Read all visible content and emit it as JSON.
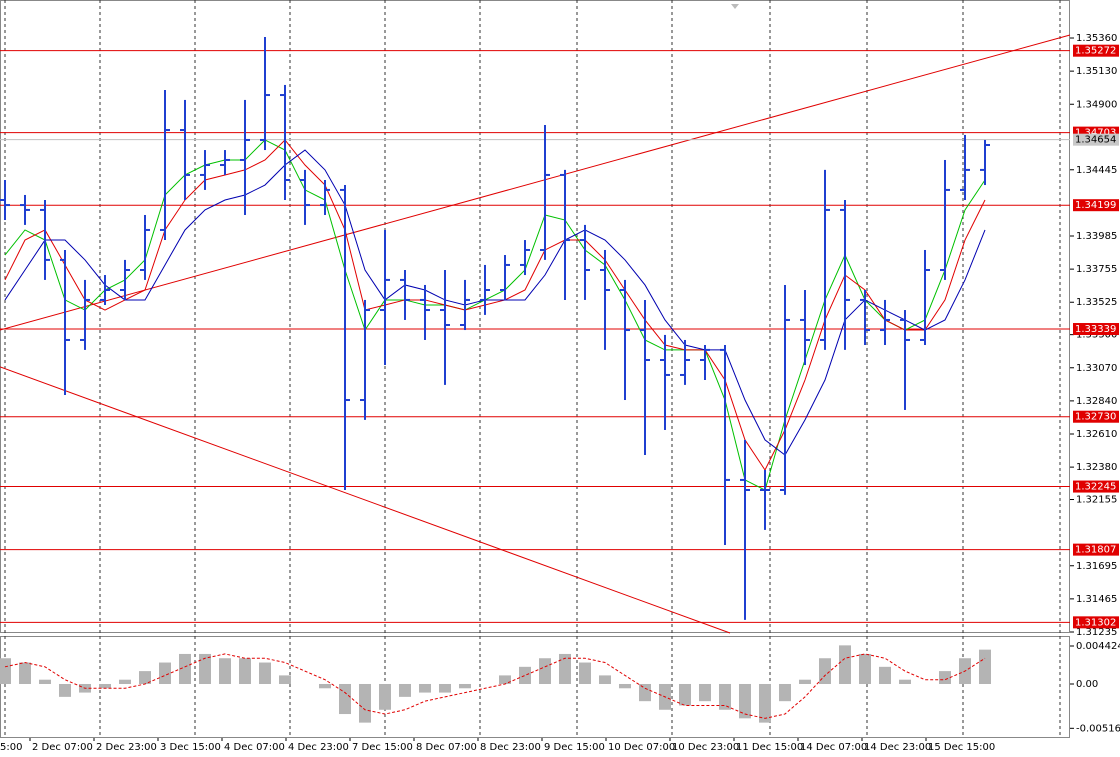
{
  "chart_data": {
    "type": "ohlc",
    "color": "#1f3fd0",
    "xlim": [
      -0.25,
      53.25
    ],
    "ylim": [
      1.31228,
      1.35624
    ],
    "yticks": [
      {
        "value": 1.3536,
        "label": "1.35360"
      },
      {
        "value": 1.3513,
        "label": "1.35130"
      },
      {
        "value": 1.349,
        "label": "1.34900"
      },
      1.34445,
      1.33985,
      1.33755,
      1.33525,
      {
        "value": 1.333,
        "label": "1.33300"
      },
      {
        "value": 1.3307,
        "label": "1.33070"
      },
      {
        "value": 1.3284,
        "label": "1.32840"
      },
      {
        "value": 1.3261,
        "label": "1.32610"
      },
      {
        "value": 1.3238,
        "label": "1.32380"
      },
      1.32155,
      1.31695,
      1.31465,
      1.31235
    ],
    "xticks": [
      {
        "value": -1.95,
        "label": "5:00"
      },
      {
        "value": 1.25,
        "label": "2 Dec 07:00"
      },
      {
        "value": 4.45,
        "label": "2 Dec 23:00"
      },
      {
        "value": 7.65,
        "label": "3 Dec 15:00"
      },
      {
        "value": 10.85,
        "label": "4 Dec 07:00"
      },
      {
        "value": 14.05,
        "label": "4 Dec 23:00"
      },
      {
        "value": 17.25,
        "label": "7 Dec 15:00"
      },
      {
        "value": 20.45,
        "label": "8 Dec 07:00"
      },
      {
        "value": 23.65,
        "label": "8 Dec 23:00"
      },
      {
        "value": 26.85,
        "label": "9 Dec 15:00"
      },
      {
        "value": 30.05,
        "label": "10 Dec 07:00"
      },
      {
        "value": 33.25,
        "label": "10 Dec 23:00"
      },
      {
        "value": 36.45,
        "label": "11 Dec 15:00"
      },
      {
        "value": 39.65,
        "label": "14 Dec 07:00"
      },
      {
        "value": 42.85,
        "label": "14 Dec 23:00"
      },
      {
        "value": 46.05,
        "label": "15 Dec 15:00"
      }
    ],
    "open": [
      1.34235,
      1.342,
      1.34166,
      1.33819,
      1.33263,
      1.33541,
      1.3361,
      1.33749,
      1.34027,
      1.34721,
      1.34409,
      1.34478,
      1.34513,
      1.34652,
      1.34964,
      1.34374,
      1.342,
      1.34305,
      1.32846,
      1.33471,
      1.3368,
      1.33541,
      1.33471,
      1.33367,
      1.33541,
      1.3361,
      1.33784,
      1.33888,
      1.34409,
      1.33957,
      1.33749,
      1.3361,
      1.33332,
      1.33124,
      1.3302,
      1.33124,
      1.33194,
      1.32291,
      1.32221,
      1.32221,
      1.33402,
      1.33263,
      1.34166,
      1.33541,
      1.33332,
      1.33402,
      1.33263,
      1.33749,
      1.34305,
      1.34444
    ],
    "high": [
      1.34374,
      1.3427,
      1.34235,
      1.33888,
      1.3368,
      1.33714,
      1.33819,
      1.34131,
      1.34999,
      1.3493,
      1.34582,
      1.34582,
      1.3493,
      1.35367,
      1.35034,
      1.34444,
      1.34374,
      1.34339,
      1.33541,
      1.34027,
      1.33749,
      1.33645,
      1.33749,
      1.3368,
      1.33784,
      1.33853,
      1.33957,
      1.34756,
      1.34444,
      1.34062,
      1.33888,
      1.3368,
      1.33541,
      1.33298,
      1.33263,
      1.33228,
      1.33228,
      1.32569,
      1.3236,
      1.33645,
      1.3361,
      1.34444,
      1.34235,
      1.3361,
      1.33541,
      1.33471,
      1.33888,
      1.34513,
      1.34687,
      1.34652
    ],
    "low": [
      1.34096,
      1.34062,
      1.3368,
      1.32881,
      1.33194,
      1.33506,
      1.33541,
      1.3368,
      1.33957,
      1.34235,
      1.34305,
      1.34409,
      1.34131,
      1.34582,
      1.34235,
      1.34062,
      1.34131,
      1.32221,
      1.32708,
      1.33089,
      1.33402,
      1.33263,
      1.32951,
      1.33332,
      1.33437,
      1.33541,
      1.33714,
      1.33819,
      1.33541,
      1.33541,
      1.33194,
      1.32846,
      1.32464,
      1.32638,
      1.32951,
      1.32985,
      1.31839,
      1.31319,
      1.31944,
      1.32187,
      1.33089,
      1.33194,
      1.33194,
      1.33228,
      1.33228,
      1.32777,
      1.33228,
      1.3368,
      1.34235,
      1.34339
    ],
    "close": [
      1.342,
      1.34166,
      1.33819,
      1.33263,
      1.33541,
      1.3361,
      1.33749,
      1.34027,
      1.34721,
      1.34409,
      1.34478,
      1.34513,
      1.34652,
      1.34964,
      1.34374,
      1.342,
      1.34305,
      1.32846,
      1.33471,
      1.3368,
      1.33541,
      1.33471,
      1.33367,
      1.33541,
      1.3361,
      1.33784,
      1.33888,
      1.34409,
      1.33957,
      1.33749,
      1.3361,
      1.33332,
      1.33124,
      1.3302,
      1.33124,
      1.33194,
      1.32291,
      1.32221,
      1.32221,
      1.33402,
      1.33263,
      1.34166,
      1.33541,
      1.33332,
      1.33402,
      1.33263,
      1.33749,
      1.34305,
      1.34444,
      1.34617
    ],
    "series": [
      {
        "color": "#00c000",
        "values": [
          1.33853,
          1.34027,
          1.33957,
          1.33541,
          1.33471,
          1.3361,
          1.3368,
          1.33819,
          1.3427,
          1.34409,
          1.34478,
          1.34513,
          1.34513,
          1.34652,
          1.34582,
          1.34305,
          1.34235,
          1.33749,
          1.33332,
          1.33541,
          1.33541,
          1.33506,
          1.33506,
          1.33471,
          1.33541,
          1.3361,
          1.33749,
          1.34131,
          1.34096,
          1.33888,
          1.33784,
          1.33541,
          1.33263,
          1.33194,
          1.33194,
          1.33194,
          1.32846,
          1.32291,
          1.32221,
          1.32708,
          1.33124,
          1.33541,
          1.33853,
          1.33541,
          1.33402,
          1.33332,
          1.33402,
          1.33749,
          1.34166,
          1.34374
        ]
      },
      {
        "color": "#e00000",
        "values": [
          1.3368,
          1.33957,
          1.34027,
          1.33784,
          1.33541,
          1.33471,
          1.33541,
          1.3361,
          1.34027,
          1.34235,
          1.34374,
          1.34409,
          1.34444,
          1.34513,
          1.34652,
          1.34478,
          1.34339,
          1.34027,
          1.33471,
          1.33506,
          1.33541,
          1.33541,
          1.33506,
          1.33471,
          1.33506,
          1.33541,
          1.3361,
          1.33888,
          1.33957,
          1.33957,
          1.33819,
          1.3361,
          1.33402,
          1.33228,
          1.33194,
          1.33194,
          1.32985,
          1.32569,
          1.3236,
          1.32638,
          1.32985,
          1.33402,
          1.33714,
          1.3361,
          1.33402,
          1.33332,
          1.33332,
          1.33541,
          1.33957,
          1.34235
        ]
      },
      {
        "color": "#0000b0",
        "values": [
          1.33541,
          1.33749,
          1.33957,
          1.33957,
          1.33819,
          1.33645,
          1.33541,
          1.33541,
          1.33784,
          1.34027,
          1.34166,
          1.34235,
          1.3427,
          1.34339,
          1.34478,
          1.34582,
          1.34444,
          1.342,
          1.33749,
          1.33541,
          1.33645,
          1.3361,
          1.33541,
          1.33506,
          1.33541,
          1.33541,
          1.33541,
          1.33714,
          1.33957,
          1.34027,
          1.33957,
          1.33819,
          1.33645,
          1.33402,
          1.33228,
          1.33194,
          1.33194,
          1.32846,
          1.32569,
          1.32464,
          1.32708,
          1.32985,
          1.33402,
          1.33541,
          1.33471,
          1.33402,
          1.33332,
          1.33402,
          1.3368,
          1.34027
        ]
      }
    ],
    "levels": [
      1.35272,
      1.34703,
      1.34199,
      1.33339,
      {
        "value": 1.3273,
        "label": "1.32730"
      },
      1.32245,
      1.31807,
      1.31302
    ],
    "level_color": "#e00000",
    "last_price": 1.34654,
    "trendlines": [
      {
        "x": [
          -0.25,
          53.25
        ],
        "y": [
          1.33332,
          1.35381
        ]
      },
      {
        "x": [
          -0.25,
          36.25
        ],
        "y": [
          1.33076,
          1.31228
        ]
      }
    ],
    "oscillator": {
      "ylim": [
        -0.00629,
        0.00559
      ],
      "yticks": [
        0.004424,
        {
          "value": 0,
          "label": "0.00"
        },
        -0.005161
      ],
      "hist_color": "#b4b4b4",
      "signal_color": "#e00000",
      "histogram": [
        0.003,
        0.0025,
        0.0005,
        -0.0015,
        -0.001,
        -0.0005,
        0.0005,
        0.0015,
        0.0025,
        0.0035,
        0.0035,
        0.003,
        0.003,
        0.0025,
        0.001,
        0,
        -0.0005,
        -0.0035,
        -0.0045,
        -0.003,
        -0.0015,
        -0.001,
        -0.001,
        -0.0005,
        0,
        0.001,
        0.002,
        0.003,
        0.0035,
        0.0025,
        0.001,
        -0.0005,
        -0.002,
        -0.003,
        -0.0025,
        -0.002,
        -0.003,
        -0.004,
        -0.0045,
        -0.002,
        0.0005,
        0.003,
        0.0045,
        0.0035,
        0.002,
        0.0005,
        0,
        0.0015,
        0.003,
        0.004
      ],
      "signal": [
        0.002,
        0.0025,
        0.002,
        0.0005,
        -0.0005,
        -0.0005,
        -0.0005,
        0,
        0.001,
        0.002,
        0.003,
        0.0035,
        0.003,
        0.003,
        0.0025,
        0.0015,
        0.0005,
        -0.001,
        -0.003,
        -0.0035,
        -0.003,
        -0.002,
        -0.0015,
        -0.001,
        -0.0005,
        0,
        0.001,
        0.002,
        0.003,
        0.003,
        0.0025,
        0.001,
        -0.0005,
        -0.0015,
        -0.0025,
        -0.0025,
        -0.0025,
        -0.0035,
        -0.004,
        -0.0035,
        -0.0015,
        0.001,
        0.003,
        0.0035,
        0.003,
        0.0015,
        0.0005,
        0.0005,
        0.0015,
        0.003
      ]
    }
  }
}
